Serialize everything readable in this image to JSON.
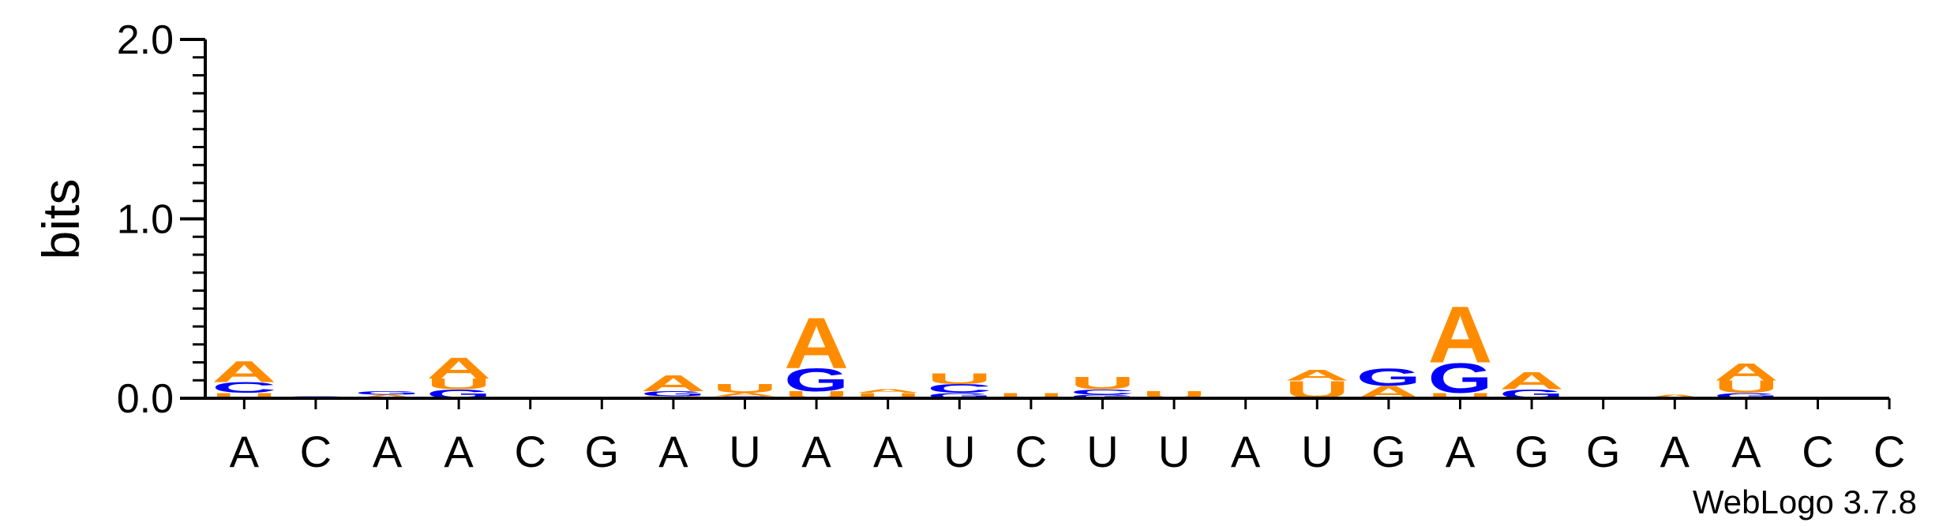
{
  "colors": {
    "A": "#FF8C00",
    "U": "#FF8C00",
    "G": "#0000FF",
    "C": "#0000FF",
    "axis": "#000000"
  },
  "chart_data": {
    "type": "sequence-logo",
    "ylabel": "bits",
    "ylim": [
      0,
      2.0
    ],
    "yticks": [
      "0.0",
      "1.0",
      "2.0"
    ],
    "consensus": [
      "A",
      "C",
      "A",
      "A",
      "C",
      "G",
      "A",
      "U",
      "A",
      "A",
      "U",
      "C",
      "U",
      "U",
      "A",
      "U",
      "G",
      "A",
      "G",
      "G",
      "A",
      "A",
      "C",
      "C"
    ],
    "positions": [
      [
        [
          "U",
          0.03
        ],
        [
          "C",
          0.06
        ],
        [
          "A",
          0.12
        ]
      ],
      [
        [
          "G",
          0.01
        ]
      ],
      [
        [
          "A",
          0.02
        ],
        [
          "G",
          0.02
        ]
      ],
      [
        [
          "G",
          0.05
        ],
        [
          "U",
          0.06
        ],
        [
          "A",
          0.12
        ]
      ],
      [],
      [],
      [
        [
          "U",
          0.01
        ],
        [
          "G",
          0.03
        ],
        [
          "A",
          0.09
        ]
      ],
      [
        [
          "G",
          0.01
        ],
        [
          "A",
          0.02
        ],
        [
          "U",
          0.05
        ]
      ],
      [
        [
          "U",
          0.04
        ],
        [
          "G",
          0.13
        ],
        [
          "A",
          0.29
        ]
      ],
      [
        [
          "U",
          0.03
        ],
        [
          "A",
          0.02
        ]
      ],
      [
        [
          "G",
          0.03
        ],
        [
          "C",
          0.05
        ],
        [
          "U",
          0.06
        ]
      ],
      [
        [
          "U",
          0.03
        ]
      ],
      [
        [
          "G",
          0.02
        ],
        [
          "C",
          0.03
        ],
        [
          "U",
          0.07
        ]
      ],
      [
        [
          "U",
          0.04
        ]
      ],
      [],
      [
        [
          "U",
          0.1
        ],
        [
          "A",
          0.06
        ]
      ],
      [
        [
          "A",
          0.07
        ],
        [
          "G",
          0.1
        ]
      ],
      [
        [
          "U",
          0.03
        ],
        [
          "G",
          0.17
        ],
        [
          "A",
          0.32
        ]
      ],
      [
        [
          "G",
          0.05
        ],
        [
          "A",
          0.1
        ]
      ],
      [],
      [
        [
          "A",
          0.02
        ]
      ],
      [
        [
          "G",
          0.03
        ],
        [
          "U",
          0.07
        ],
        [
          "A",
          0.1
        ]
      ],
      [],
      []
    ],
    "credit": "WebLogo 3.7.8"
  }
}
